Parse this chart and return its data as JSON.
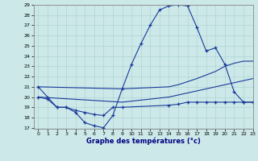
{
  "title": "Graphe des températures (°c)",
  "xlim": [
    -0.5,
    23
  ],
  "ylim": [
    17,
    29
  ],
  "yticks": [
    17,
    18,
    19,
    20,
    21,
    22,
    23,
    24,
    25,
    26,
    27,
    28,
    29
  ],
  "xticks": [
    0,
    1,
    2,
    3,
    4,
    5,
    6,
    7,
    8,
    9,
    10,
    11,
    12,
    13,
    14,
    15,
    16,
    17,
    18,
    19,
    20,
    21,
    22,
    23
  ],
  "bg_color": "#cce8e8",
  "line_color": "#1a3a9a",
  "line1_x": [
    0,
    1,
    2,
    3,
    4,
    5,
    6,
    7,
    8,
    9,
    10,
    11,
    12,
    13,
    14,
    15,
    16,
    17,
    18,
    19,
    20,
    21,
    22,
    23
  ],
  "line1_y": [
    21.0,
    20.0,
    19.0,
    19.0,
    18.5,
    17.5,
    17.2,
    17.0,
    18.2,
    20.8,
    23.2,
    25.2,
    27.0,
    28.5,
    28.9,
    29.0,
    28.9,
    26.8,
    24.5,
    24.8,
    23.2,
    20.5,
    19.5,
    19.5
  ],
  "line2_x": [
    0,
    9,
    14,
    15,
    17,
    19,
    20,
    21,
    22,
    23
  ],
  "line2_y": [
    21.0,
    20.8,
    21.0,
    21.2,
    21.8,
    22.5,
    23.0,
    23.3,
    23.5,
    23.5
  ],
  "line3_x": [
    0,
    9,
    14,
    15,
    17,
    19,
    20,
    21,
    22,
    23
  ],
  "line3_y": [
    20.0,
    19.5,
    20.0,
    20.2,
    20.6,
    21.0,
    21.2,
    21.4,
    21.6,
    21.8
  ],
  "line4_x": [
    0,
    1,
    2,
    3,
    4,
    5,
    6,
    7,
    8,
    9,
    14,
    15,
    16,
    17,
    18,
    19,
    20,
    21,
    22,
    23
  ],
  "line4_y": [
    20.0,
    19.8,
    19.0,
    19.0,
    18.7,
    18.5,
    18.3,
    18.2,
    19.0,
    19.0,
    19.2,
    19.3,
    19.5,
    19.5,
    19.5,
    19.5,
    19.5,
    19.5,
    19.5,
    19.5
  ]
}
